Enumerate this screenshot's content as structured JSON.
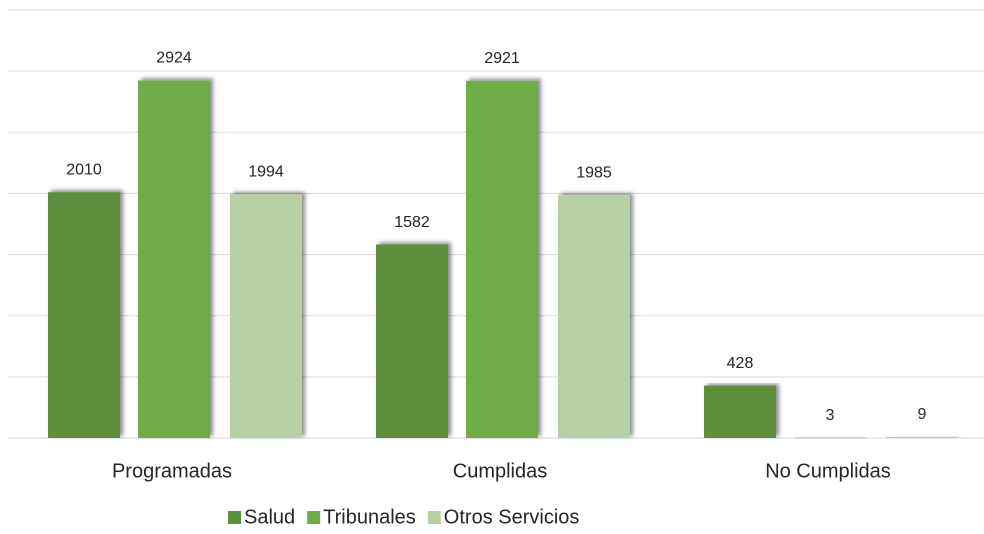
{
  "chart_data": {
    "type": "bar",
    "categories": [
      "Programadas",
      "Cumplidas",
      "No Cumplidas"
    ],
    "series": [
      {
        "name": "Salud",
        "color": "#5b8f3a",
        "values": [
          2010,
          1582,
          428
        ]
      },
      {
        "name": "Tribunales",
        "color": "#70ad47",
        "values": [
          2924,
          2921,
          3
        ]
      },
      {
        "name": "Otros Servicios",
        "color": "#b6d0a3",
        "values": [
          1994,
          1985,
          9
        ]
      }
    ],
    "ylim": [
      0,
      3500
    ],
    "yticks": [
      0,
      500,
      1000,
      1500,
      2000,
      2500,
      3000,
      3500
    ],
    "grid": true,
    "legend": "bottom"
  }
}
